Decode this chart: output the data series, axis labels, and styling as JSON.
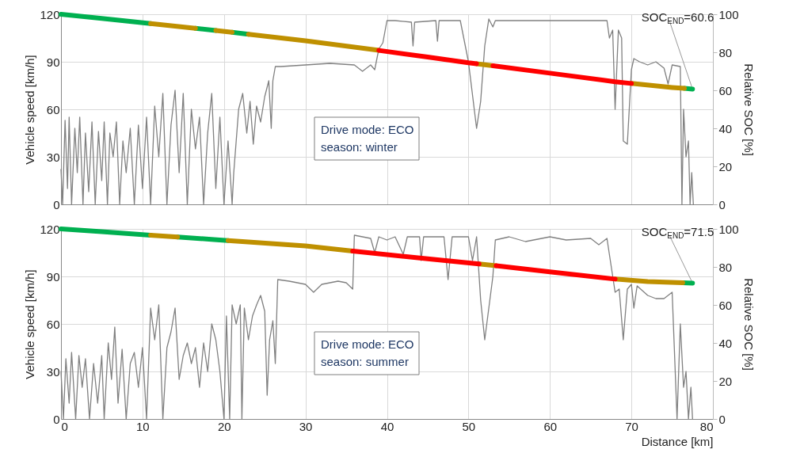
{
  "chart_data": [
    {
      "type": "line",
      "ylabel": "Vehicle speed [km/h]",
      "y2label": "Relative SOC [%]",
      "xlim": [
        0,
        80
      ],
      "xticks": [
        0,
        10,
        20,
        30,
        40,
        50,
        60,
        70,
        80
      ],
      "ylim": [
        0,
        120
      ],
      "yticks": [
        0,
        30,
        60,
        90,
        120
      ],
      "y2lim": [
        0,
        100
      ],
      "y2ticks": [
        0,
        20,
        40,
        60,
        80,
        100
      ],
      "grid": true,
      "tick_labels": "y",
      "annotations": [
        "Drive mode: ECO",
        "season: winter",
        {
          "text": "SOC$_{END}$=60.6",
          "x": 77.5,
          "y": 72.7
        }
      ],
      "series": [
        {
          "type": "line",
          "color": "#808080",
          "x": [
            0,
            0.2,
            0.5,
            0.8,
            1,
            1.3,
            1.7,
            2,
            2.3,
            2.7,
            3,
            3.4,
            3.8,
            4.2,
            4.6,
            5,
            5.3,
            5.7,
            6,
            6.4,
            6.8,
            7.2,
            7.6,
            8,
            8.5,
            9,
            9.5,
            10,
            10.5,
            11,
            11.5,
            12,
            12.5,
            13,
            13.5,
            14,
            14.5,
            15,
            15.5,
            16,
            16.5,
            17,
            17.5,
            18,
            18.5,
            19,
            19.5,
            20,
            20.5,
            21,
            21.2,
            21.8,
            22.3,
            22.8,
            23.2,
            23.6,
            24,
            24.5,
            25,
            25.5,
            25.8,
            26,
            26.3,
            27,
            30,
            33,
            36,
            37,
            38,
            38.5,
            39,
            39.5,
            40,
            41,
            43,
            43.2,
            43.4,
            46,
            46.2,
            46.4,
            49,
            50,
            51,
            51.5,
            52,
            52.5,
            53,
            53.3,
            63,
            67,
            67.3,
            67.7,
            68,
            68.4,
            68.8,
            69,
            69.5,
            70,
            70.3,
            71,
            72,
            73,
            74,
            74.5,
            75,
            76,
            76.2,
            76.4,
            76.7,
            77,
            77.2,
            77.4,
            77.6
          ],
          "values": [
            22,
            0,
            53,
            10,
            55,
            0,
            48,
            20,
            55,
            0,
            45,
            8,
            52,
            0,
            46,
            15,
            52,
            0,
            45,
            30,
            52,
            0,
            40,
            20,
            48,
            0,
            50,
            10,
            55,
            0,
            62,
            30,
            70,
            0,
            50,
            72,
            20,
            70,
            0,
            60,
            35,
            55,
            0,
            45,
            70,
            10,
            55,
            0,
            40,
            0,
            20,
            60,
            70,
            45,
            65,
            38,
            62,
            52,
            68,
            78,
            48,
            78,
            87,
            87,
            88,
            89,
            88,
            84,
            88,
            85,
            98,
            102,
            116,
            116,
            115,
            100,
            115,
            116,
            103,
            116,
            116,
            90,
            48,
            65,
            100,
            117,
            112,
            116,
            116,
            116,
            105,
            110,
            60,
            110,
            105,
            40,
            38,
            85,
            92,
            90,
            88,
            90,
            86,
            76,
            88,
            87,
            0,
            60,
            30,
            40,
            0,
            20,
            0
          ]
        },
        {
          "type": "line",
          "axis": "y2",
          "color": "#00b050",
          "x": [
            0,
            5,
            11,
            13,
            16.5,
            19,
            20,
            21,
            23,
            50,
            76.5,
            77.5
          ],
          "values": [
            100,
            97.8,
            95.1,
            null,
            92.6,
            91.5,
            null,
            90.5,
            89.5,
            null,
            61,
            60.6
          ]
        },
        {
          "type": "line",
          "axis": "y2",
          "color": "#bf9000",
          "x": [
            11,
            16.5,
            17.5,
            19,
            21,
            22,
            23,
            30,
            39,
            45,
            51,
            53,
            60,
            70,
            75,
            76.5
          ],
          "values": [
            95.1,
            92.6,
            null,
            91.5,
            90.5,
            null,
            89.5,
            86,
            81,
            null,
            74,
            72.9,
            null,
            63.6,
            61.5,
            61
          ]
        },
        {
          "type": "line",
          "axis": "y2",
          "color": "#ff0000",
          "x": [
            39,
            45,
            50,
            51,
            52,
            53,
            60,
            68,
            70
          ],
          "values": [
            81,
            77.5,
            74.5,
            74,
            null,
            72.9,
            69,
            64.5,
            63.6
          ]
        }
      ]
    },
    {
      "type": "line",
      "xlabel": "Distance [km]",
      "ylabel": "Vehicle speed [km/h]",
      "y2label": "Relative SOC [%]",
      "xlim": [
        0,
        80
      ],
      "xticks": [
        0,
        10,
        20,
        30,
        40,
        50,
        60,
        70,
        80
      ],
      "ylim": [
        0,
        120
      ],
      "yticks": [
        0,
        30,
        60,
        90,
        120
      ],
      "y2lim": [
        0,
        100
      ],
      "y2ticks": [
        0,
        20,
        40,
        60,
        80,
        100
      ],
      "grid": true,
      "annotations": [
        "Drive mode: ECO",
        "season: summer",
        {
          "text": "SOC$_{END}$=71.5",
          "x": 77.5,
          "y": 85.8
        }
      ],
      "series": [
        {
          "type": "line",
          "color": "#808080",
          "x": [
            0,
            0.3,
            0.6,
            1,
            1.3,
            1.8,
            2.2,
            2.6,
            3,
            3.5,
            4,
            4.5,
            5,
            5.3,
            5.8,
            6.2,
            6.6,
            7,
            7.5,
            8,
            8.5,
            9,
            9.5,
            10,
            10.5,
            11,
            11.5,
            12,
            12.5,
            13,
            13.5,
            14,
            14.5,
            15,
            15.5,
            16,
            16.5,
            17,
            17.5,
            18,
            18.5,
            19,
            19.5,
            20,
            20.3,
            20.7,
            21,
            21.5,
            22,
            22.2,
            22.5,
            23,
            23.5,
            24,
            24.5,
            25,
            25.3,
            25.6,
            26,
            26.3,
            26.6,
            28,
            30,
            31,
            32,
            34,
            35,
            35.8,
            36,
            38,
            38.5,
            39,
            40,
            41,
            42,
            42.5,
            44,
            44.2,
            44.5,
            47,
            47.5,
            48,
            50,
            50.5,
            51,
            51.5,
            52,
            52.5,
            53,
            53.3,
            55,
            57,
            60,
            62,
            65,
            66,
            67,
            68,
            68.5,
            69,
            69.5,
            70,
            70.3,
            70.7,
            72,
            73,
            74,
            75,
            75.6,
            76,
            76.4,
            76.7,
            77,
            77.3,
            77.5
          ],
          "values": [
            30,
            0,
            38,
            10,
            42,
            0,
            40,
            20,
            38,
            0,
            35,
            10,
            40,
            0,
            48,
            25,
            58,
            10,
            44,
            0,
            35,
            42,
            20,
            45,
            0,
            70,
            50,
            72,
            0,
            45,
            55,
            70,
            25,
            40,
            48,
            35,
            45,
            20,
            48,
            30,
            60,
            50,
            30,
            0,
            65,
            0,
            72,
            60,
            72,
            0,
            70,
            50,
            65,
            72,
            78,
            68,
            15,
            50,
            62,
            35,
            88,
            87,
            85,
            80,
            85,
            87,
            86,
            82,
            116,
            114,
            105,
            115,
            113,
            115,
            104,
            115,
            115,
            100,
            115,
            115,
            88,
            115,
            115,
            100,
            115,
            75,
            50,
            70,
            90,
            113,
            115,
            112,
            115,
            113,
            114,
            110,
            114,
            80,
            82,
            50,
            82,
            85,
            70,
            84,
            78,
            76,
            76,
            80,
            0,
            60,
            20,
            30,
            0,
            20,
            0
          ]
        },
        {
          "type": "line",
          "axis": "y2",
          "color": "#00b050",
          "x": [
            0,
            5,
            11,
            12.5,
            14.3,
            18.8,
            20.5,
            40,
            76.3,
            77.5
          ],
          "values": [
            100,
            98.5,
            96.7,
            null,
            95.7,
            94.4,
            93.9,
            null,
            71.7,
            71.5
          ]
        },
        {
          "type": "line",
          "axis": "y2",
          "color": "#bf9000",
          "x": [
            11,
            14.3,
            16,
            20.5,
            30,
            35.8,
            45,
            51.3,
            53.4,
            60,
            68,
            72,
            76.3
          ],
          "values": [
            96.7,
            95.7,
            null,
            93.9,
            91,
            88.3,
            null,
            81.6,
            80.6,
            null,
            73.6,
            72.3,
            71.7
          ]
        },
        {
          "type": "line",
          "axis": "y2",
          "color": "#ff0000",
          "x": [
            35.8,
            45,
            51.3,
            52.5,
            53.4,
            60,
            68
          ],
          "values": [
            88.3,
            84.3,
            81.6,
            null,
            80.6,
            77.4,
            73.6
          ]
        }
      ]
    }
  ]
}
